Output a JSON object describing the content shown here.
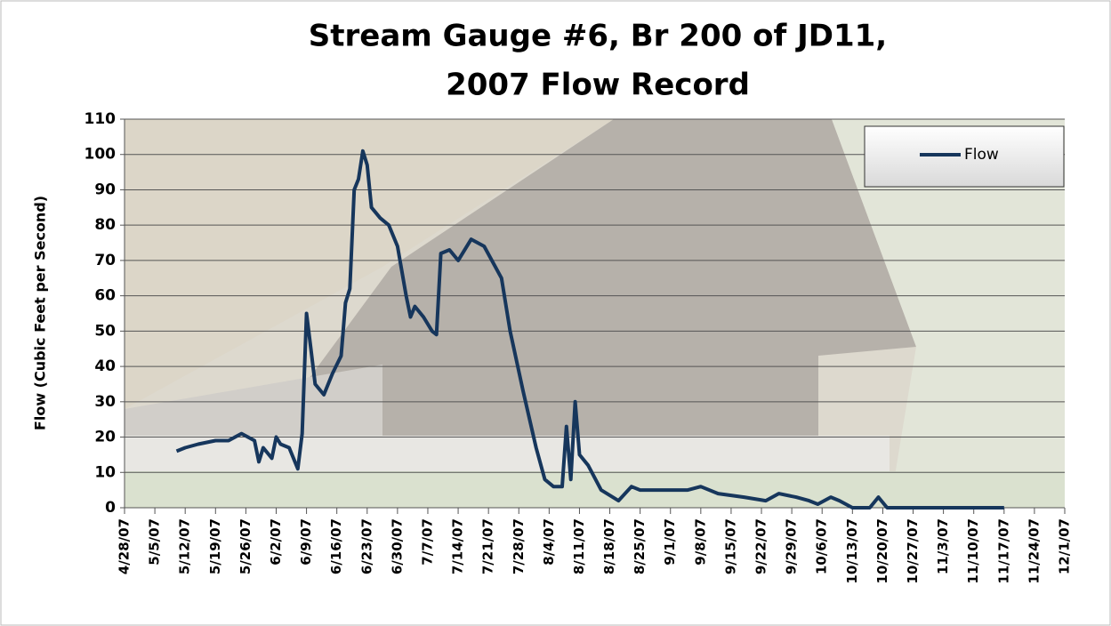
{
  "chart_data": {
    "type": "line",
    "title": [
      "Stream Gauge #6, Br 200 of JD11,",
      "2007 Flow Record"
    ],
    "y_label": "Flow (Cubic Feet per Second)",
    "legend_position": "upper right",
    "grid": true,
    "ylim": [
      0,
      110
    ],
    "yticks": [
      0,
      10,
      20,
      30,
      40,
      50,
      60,
      70,
      80,
      90,
      100,
      110
    ],
    "xlim": [
      "4/28/07",
      "12/1/07"
    ],
    "xticks": [
      "4/28/07",
      "5/5/07",
      "5/12/07",
      "5/19/07",
      "5/26/07",
      "6/2/07",
      "6/9/07",
      "6/16/07",
      "6/23/07",
      "6/30/07",
      "7/7/07",
      "7/14/07",
      "7/21/07",
      "7/28/07",
      "8/4/07",
      "8/11/07",
      "8/18/07",
      "8/25/07",
      "9/1/07",
      "9/8/07",
      "9/15/07",
      "9/22/07",
      "9/29/07",
      "10/6/07",
      "10/13/07",
      "10/20/07",
      "10/27/07",
      "11/3/07",
      "11/10/07",
      "11/17/07",
      "11/24/07",
      "12/1/07"
    ],
    "x": [
      "5/10/07",
      "5/12/07",
      "5/15/07",
      "5/19/07",
      "5/22/07",
      "5/25/07",
      "5/28/07",
      "5/29/07",
      "5/30/07",
      "6/1/07",
      "6/2/07",
      "6/3/07",
      "6/5/07",
      "6/7/07",
      "6/8/07",
      "6/9/07",
      "6/10/07",
      "6/11/07",
      "6/13/07",
      "6/15/07",
      "6/17/07",
      "6/18/07",
      "6/19/07",
      "6/20/07",
      "6/21/07",
      "6/22/07",
      "6/23/07",
      "6/24/07",
      "6/26/07",
      "6/28/07",
      "6/30/07",
      "7/2/07",
      "7/3/07",
      "7/4/07",
      "7/6/07",
      "7/8/07",
      "7/9/07",
      "7/10/07",
      "7/12/07",
      "7/14/07",
      "7/17/07",
      "7/20/07",
      "7/24/07",
      "7/26/07",
      "7/29/07",
      "8/1/07",
      "8/3/07",
      "8/5/07",
      "8/7/07",
      "8/8/07",
      "8/9/07",
      "8/10/07",
      "8/11/07",
      "8/13/07",
      "8/16/07",
      "8/20/07",
      "8/23/07",
      "8/25/07",
      "9/1/07",
      "9/5/07",
      "9/8/07",
      "9/12/07",
      "9/18/07",
      "9/23/07",
      "9/26/07",
      "9/30/07",
      "10/3/07",
      "10/5/07",
      "10/8/07",
      "10/10/07",
      "10/13/07",
      "10/17/07",
      "10/19/07",
      "10/21/07",
      "11/17/07"
    ],
    "series": [
      {
        "name": "Flow",
        "color": "#16365c",
        "values": [
          16,
          17,
          18,
          19,
          19,
          21,
          19,
          13,
          17,
          14,
          20,
          18,
          17,
          11,
          21,
          55,
          45,
          35,
          32,
          38,
          43,
          58,
          62,
          90,
          93,
          101,
          97,
          85,
          82,
          80,
          74,
          60,
          54,
          57,
          54,
          50,
          49,
          72,
          73,
          70,
          76,
          74,
          65,
          50,
          33,
          17,
          8,
          6,
          6,
          23,
          8,
          30,
          15,
          12,
          5,
          2,
          6,
          5,
          5,
          5,
          6,
          4,
          3,
          2,
          4,
          3,
          2,
          1,
          3,
          2,
          0,
          0,
          3,
          0,
          0
        ]
      }
    ]
  }
}
